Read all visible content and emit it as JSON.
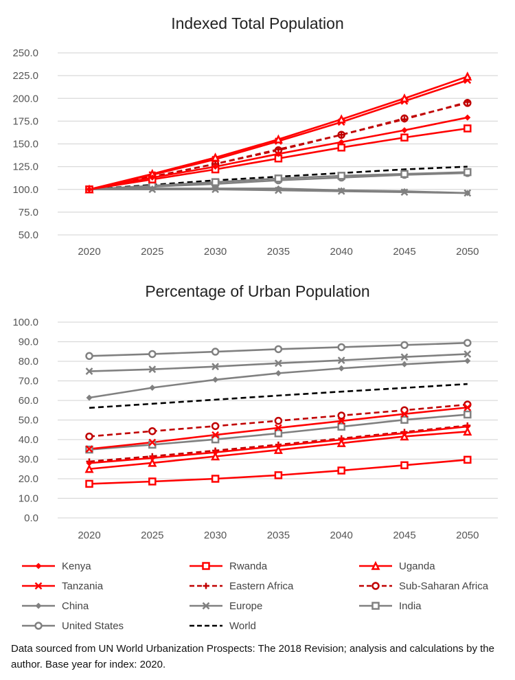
{
  "legend": [
    {
      "name": "Kenya",
      "color": "#ff0000",
      "dash": false,
      "marker": "diamond"
    },
    {
      "name": "Rwanda",
      "color": "#ff0000",
      "dash": false,
      "marker": "square"
    },
    {
      "name": "Uganda",
      "color": "#ff0000",
      "dash": false,
      "marker": "triangle"
    },
    {
      "name": "Tanzania",
      "color": "#ff0000",
      "dash": false,
      "marker": "x"
    },
    {
      "name": "Eastern Africa",
      "color": "#c00000",
      "dash": true,
      "marker": "plus"
    },
    {
      "name": "Sub-Saharan Africa",
      "color": "#c00000",
      "dash": true,
      "marker": "circle"
    },
    {
      "name": "China",
      "color": "#808080",
      "dash": false,
      "marker": "diamond"
    },
    {
      "name": "Europe",
      "color": "#808080",
      "dash": false,
      "marker": "x"
    },
    {
      "name": "India",
      "color": "#808080",
      "dash": false,
      "marker": "square"
    },
    {
      "name": "United States",
      "color": "#808080",
      "dash": false,
      "marker": "circle"
    },
    {
      "name": "World",
      "color": "#000000",
      "dash": true,
      "marker": "none"
    }
  ],
  "note": "Data sourced from UN World Urbanization Prospects: The 2018 Revision; analysis and calculations by the author. Base year for index: 2020.",
  "chart_data": [
    {
      "type": "line",
      "title": "Indexed Total Population",
      "categories": [
        "2020",
        "2025",
        "2030",
        "2035",
        "2040",
        "2045",
        "2050"
      ],
      "ylim": [
        50,
        250
      ],
      "yticks": [
        "50.0",
        "75.0",
        "100.0",
        "125.0",
        "150.0",
        "175.0",
        "200.0",
        "225.0",
        "250.0"
      ],
      "grid": true,
      "legend": "bottom",
      "series": [
        {
          "name": "Kenya",
          "values": [
            100,
            113,
            125,
            139,
            152,
            165,
            179
          ]
        },
        {
          "name": "Rwanda",
          "values": [
            100,
            111,
            122,
            134,
            146,
            157,
            167
          ]
        },
        {
          "name": "Uganda",
          "values": [
            100,
            117,
            135,
            155,
            177,
            200,
            224
          ]
        },
        {
          "name": "Tanzania",
          "values": [
            100,
            116,
            133,
            153,
            174,
            197,
            220
          ]
        },
        {
          "name": "Eastern Africa",
          "values": [
            100,
            114,
            128,
            144,
            160,
            177,
            196
          ]
        },
        {
          "name": "Sub-Saharan Africa",
          "values": [
            100,
            114,
            128,
            143,
            160,
            178,
            195
          ]
        },
        {
          "name": "China",
          "values": [
            100,
            101,
            101,
            101,
            99,
            98,
            96
          ]
        },
        {
          "name": "Europe",
          "values": [
            100,
            100,
            100,
            99,
            98,
            97,
            96
          ]
        },
        {
          "name": "India",
          "values": [
            100,
            104,
            108,
            112,
            115,
            117,
            119
          ]
        },
        {
          "name": "United States",
          "values": [
            100,
            103,
            106,
            110,
            113,
            116,
            118
          ]
        },
        {
          "name": "World",
          "values": [
            100,
            105,
            110,
            114,
            118,
            122,
            125
          ]
        }
      ]
    },
    {
      "type": "line",
      "title": "Percentage of Urban Population",
      "categories": [
        "2020",
        "2025",
        "2030",
        "2035",
        "2040",
        "2045",
        "2050"
      ],
      "ylim": [
        0,
        100
      ],
      "yticks": [
        "0.0",
        "10.0",
        "20.0",
        "30.0",
        "40.0",
        "50.0",
        "60.0",
        "70.0",
        "80.0",
        "90.0",
        "100.0"
      ],
      "grid": true,
      "legend": "bottom",
      "series": [
        {
          "name": "Kenya",
          "values": [
            28.0,
            30.6,
            33.5,
            36.7,
            40.0,
            43.3,
            46.7
          ]
        },
        {
          "name": "Rwanda",
          "values": [
            17.4,
            18.6,
            20.0,
            21.8,
            24.2,
            26.9,
            29.7
          ]
        },
        {
          "name": "Uganda",
          "values": [
            25.0,
            28.1,
            31.4,
            34.7,
            38.2,
            41.6,
            44.1
          ]
        },
        {
          "name": "Tanzania",
          "values": [
            35.2,
            38.6,
            42.4,
            46.0,
            49.5,
            53.1,
            56.4
          ]
        },
        {
          "name": "Eastern Africa",
          "values": [
            28.8,
            31.5,
            34.4,
            37.4,
            40.6,
            43.9,
            47.2
          ]
        },
        {
          "name": "Sub-Saharan Africa",
          "values": [
            41.6,
            44.3,
            46.9,
            49.6,
            52.3,
            55.0,
            57.9
          ]
        },
        {
          "name": "China",
          "values": [
            61.4,
            66.5,
            70.6,
            73.9,
            76.4,
            78.5,
            80.2
          ]
        },
        {
          "name": "Europe",
          "values": [
            74.9,
            75.9,
            77.3,
            79.0,
            80.5,
            82.2,
            83.7
          ]
        },
        {
          "name": "India",
          "values": [
            34.9,
            37.4,
            40.1,
            43.2,
            46.6,
            50.1,
            52.8
          ]
        },
        {
          "name": "United States",
          "values": [
            82.7,
            83.7,
            84.9,
            86.2,
            87.2,
            88.3,
            89.4
          ]
        },
        {
          "name": "World",
          "values": [
            56.2,
            58.3,
            60.4,
            62.5,
            64.5,
            66.4,
            68.4
          ]
        }
      ]
    }
  ]
}
